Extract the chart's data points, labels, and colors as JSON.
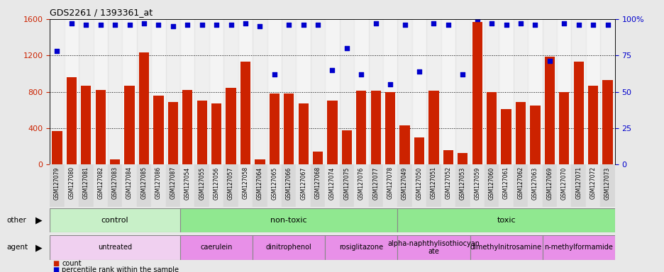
{
  "title": "GDS2261 / 1393361_at",
  "samples": [
    "GSM127079",
    "GSM127080",
    "GSM127081",
    "GSM127082",
    "GSM127083",
    "GSM127084",
    "GSM127085",
    "GSM127086",
    "GSM127087",
    "GSM127054",
    "GSM127055",
    "GSM127056",
    "GSM127057",
    "GSM127058",
    "GSM127064",
    "GSM127065",
    "GSM127066",
    "GSM127067",
    "GSM127068",
    "GSM127074",
    "GSM127075",
    "GSM127076",
    "GSM127077",
    "GSM127078",
    "GSM127049",
    "GSM127050",
    "GSM127051",
    "GSM127052",
    "GSM127053",
    "GSM127059",
    "GSM127060",
    "GSM127061",
    "GSM127062",
    "GSM127063",
    "GSM127069",
    "GSM127070",
    "GSM127071",
    "GSM127072",
    "GSM127073"
  ],
  "counts": [
    370,
    960,
    870,
    820,
    60,
    870,
    1230,
    760,
    690,
    820,
    700,
    670,
    840,
    1130,
    60,
    780,
    780,
    670,
    140,
    700,
    380,
    810,
    810,
    800,
    430,
    300,
    810,
    155,
    130,
    1570,
    800,
    610,
    690,
    650,
    1190,
    800,
    1130,
    870,
    930
  ],
  "percentile_ranks": [
    78,
    97,
    96,
    96,
    96,
    96,
    97,
    96,
    95,
    96,
    96,
    96,
    96,
    97,
    95,
    62,
    96,
    96,
    96,
    65,
    80,
    62,
    97,
    55,
    96,
    64,
    97,
    96,
    62,
    100,
    97,
    96,
    97,
    96,
    71,
    97,
    96,
    96,
    96
  ],
  "other_groups": [
    {
      "label": "control",
      "start": 0,
      "end": 9,
      "color": "#c8f0c8"
    },
    {
      "label": "non-toxic",
      "start": 9,
      "end": 24,
      "color": "#90e890"
    },
    {
      "label": "toxic",
      "start": 24,
      "end": 39,
      "color": "#90e890"
    }
  ],
  "agent_groups": [
    {
      "label": "untreated",
      "start": 0,
      "end": 9,
      "color": "#f0d0f0"
    },
    {
      "label": "caerulein",
      "start": 9,
      "end": 14,
      "color": "#e890e8"
    },
    {
      "label": "dinitrophenol",
      "start": 14,
      "end": 19,
      "color": "#e890e8"
    },
    {
      "label": "rosiglitazone",
      "start": 19,
      "end": 24,
      "color": "#e890e8"
    },
    {
      "label": "alpha-naphthylisothiocyan\nate",
      "start": 24,
      "end": 29,
      "color": "#e890e8"
    },
    {
      "label": "dimethylnitrosamine",
      "start": 29,
      "end": 34,
      "color": "#e890e8"
    },
    {
      "label": "n-methylformamide",
      "start": 34,
      "end": 39,
      "color": "#e890e8"
    }
  ],
  "bar_color": "#cc2200",
  "dot_color": "#0000cc",
  "left_ylim": [
    0,
    1600
  ],
  "right_ylim": [
    0,
    100
  ],
  "left_yticks": [
    0,
    400,
    800,
    1200,
    1600
  ],
  "right_yticks": [
    0,
    25,
    50,
    75,
    100
  ],
  "background_color": "#e8e8e8",
  "plot_bg": "#ffffff",
  "dotted_lines": [
    400,
    800,
    1200
  ],
  "legend_count_label": "count",
  "legend_pct_label": "percentile rank within the sample"
}
